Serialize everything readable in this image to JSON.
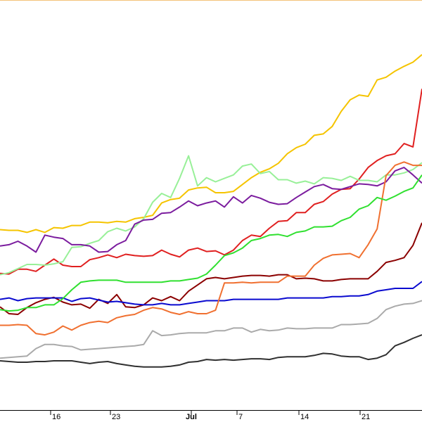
{
  "chart_data": {
    "type": "line",
    "title": "",
    "xlabel": "",
    "ylabel": "",
    "x_ticks": [
      "16",
      "23",
      "Jul",
      "7",
      "14",
      "21"
    ],
    "x_major_tick": "Jul",
    "grid": false,
    "legend": "none",
    "x": [
      0,
      1,
      2,
      3,
      4,
      5,
      6,
      7,
      8,
      9,
      10,
      11,
      12,
      13,
      14,
      15,
      16,
      17,
      18,
      19,
      20,
      21,
      22,
      23,
      24,
      25,
      26,
      27,
      28,
      29,
      30,
      31,
      32,
      33,
      34,
      35,
      36,
      37,
      38,
      39,
      40,
      41,
      42,
      43,
      44,
      45,
      46,
      47
    ],
    "ylim": [
      0,
      600
    ],
    "series": [
      {
        "color": "#f5c400",
        "values": [
          264,
          263,
          263,
          260,
          264,
          260,
          267,
          266,
          270,
          270,
          275,
          275,
          274,
          276,
          275,
          280,
          282,
          285,
          303,
          308,
          310,
          322,
          325,
          326,
          318,
          318,
          320,
          330,
          340,
          348,
          353,
          361,
          375,
          384,
          389,
          402,
          404,
          415,
          437,
          454,
          461,
          459,
          483,
          487,
          496,
          503,
          509,
          520
        ]
      },
      {
        "color": "#e02020",
        "values": [
          200,
          199,
          206,
          206,
          203,
          212,
          221,
          212,
          210,
          210,
          220,
          223,
          227,
          223,
          228,
          226,
          225,
          226,
          234,
          228,
          224,
          234,
          237,
          232,
          233,
          227,
          234,
          248,
          256,
          254,
          266,
          276,
          277,
          289,
          289,
          301,
          305,
          316,
          323,
          324,
          338,
          355,
          365,
          372,
          375,
          390,
          385,
          470
        ]
      },
      {
        "color": "#98f098",
        "values": [
          198,
          201,
          207,
          213,
          213,
          212,
          214,
          217,
          238,
          239,
          244,
          248,
          261,
          266,
          262,
          268,
          280,
          304,
          317,
          311,
          339,
          372,
          328,
          340,
          334,
          339,
          344,
          357,
          360,
          346,
          349,
          337,
          337,
          332,
          335,
          331,
          340,
          339,
          336,
          342,
          336,
          336,
          334,
          344,
          344,
          347,
          352,
          362
        ]
      },
      {
        "color": "#7b1c9e",
        "values": [
          240,
          242,
          247,
          240,
          231,
          256,
          253,
          251,
          242,
          242,
          240,
          231,
          232,
          242,
          248,
          272,
          278,
          279,
          288,
          289,
          297,
          306,
          299,
          303,
          306,
          297,
          312,
          303,
          314,
          310,
          304,
          301,
          302,
          311,
          319,
          327,
          330,
          324,
          323,
          327,
          331,
          330,
          328,
          334,
          350,
          355,
          344,
          332
        ]
      },
      {
        "color": "#8b0000",
        "values": [
          151,
          141,
          140,
          150,
          157,
          162,
          165,
          158,
          154,
          155,
          149,
          162,
          156,
          169,
          151,
          150,
          154,
          164,
          160,
          166,
          160,
          174,
          183,
          192,
          194,
          192,
          194,
          196,
          197,
          197,
          196,
          198,
          198,
          192,
          193,
          192,
          189,
          189,
          191,
          192,
          192,
          192,
          203,
          216,
          219,
          223,
          241,
          274
        ]
      },
      {
        "color": "#0a0acf",
        "values": [
          162,
          164,
          160,
          163,
          164,
          164,
          164,
          164,
          159,
          163,
          164,
          161,
          158,
          159,
          157,
          155,
          154,
          154,
          156,
          154,
          154,
          156,
          158,
          160,
          160,
          160,
          162,
          162,
          162,
          162,
          162,
          162,
          164,
          164,
          164,
          164,
          164,
          166,
          166,
          167,
          167,
          169,
          174,
          176,
          178,
          178,
          178,
          188
        ]
      },
      {
        "color": "#303030",
        "values": [
          72,
          71,
          70,
          70,
          71,
          71,
          72,
          72,
          72,
          70,
          68,
          70,
          71,
          68,
          66,
          64,
          63,
          63,
          63,
          64,
          66,
          70,
          71,
          74,
          73,
          74,
          73,
          74,
          75,
          75,
          74,
          77,
          78,
          78,
          78,
          80,
          83,
          82,
          79,
          78,
          78,
          74,
          76,
          81,
          94,
          99,
          105,
          110
        ]
      },
      {
        "color": "#aaaaaa",
        "values": [
          76,
          77,
          78,
          79,
          90,
          96,
          96,
          94,
          93,
          88,
          89,
          90,
          91,
          92,
          93,
          94,
          96,
          116,
          109,
          110,
          112,
          113,
          113,
          113,
          116,
          116,
          120,
          120,
          114,
          118,
          116,
          117,
          120,
          119,
          119,
          120,
          120,
          120,
          125,
          125,
          126,
          127,
          134,
          147,
          152,
          155,
          156,
          160
        ]
      },
      {
        "color": "#f07030",
        "values": [
          124,
          124,
          125,
          124,
          112,
          110,
          114,
          123,
          117,
          124,
          128,
          130,
          128,
          135,
          138,
          140,
          146,
          150,
          148,
          143,
          140,
          144,
          141,
          141,
          146,
          186,
          186,
          187,
          186,
          187,
          187,
          187,
          196,
          196,
          196,
          212,
          222,
          227,
          228,
          229,
          223,
          242,
          265,
          343,
          358,
          363,
          358,
          358
        ]
      },
      {
        "color": "#30e030",
        "values": [
          147,
          145,
          146,
          150,
          150,
          154,
          154,
          163,
          176,
          187,
          189,
          190,
          190,
          190,
          187,
          187,
          187,
          187,
          187,
          189,
          189,
          191,
          193,
          199,
          212,
          226,
          230,
          237,
          248,
          251,
          256,
          257,
          254,
          260,
          262,
          268,
          268,
          269,
          277,
          282,
          294,
          299,
          311,
          307,
          313,
          320,
          325,
          344
        ]
      }
    ]
  }
}
